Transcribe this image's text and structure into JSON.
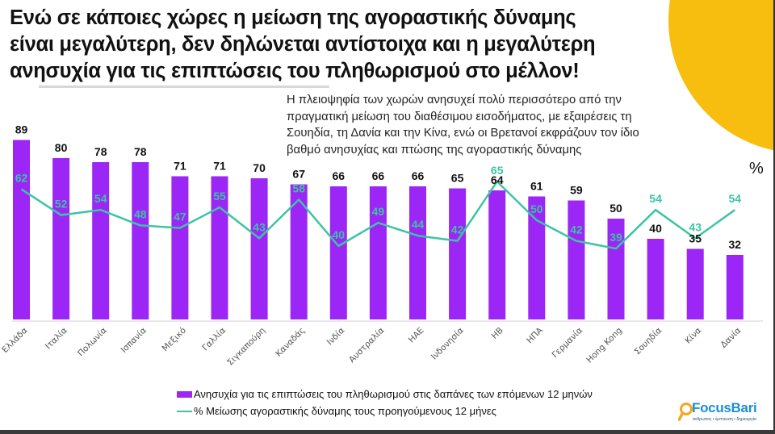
{
  "title_lines": [
    "Ενώ σε κάποιες χώρες η μείωση της αγοραστικής δύναμης",
    "είναι μεγαλύτερη, δεν δηλώνεται αντίστοιχα και η μεγαλύτερη",
    "ανησυχία για τις επιπτώσεις του πληθωρισμού στο μέλλον!"
  ],
  "subtitle_lines": [
    "Η πλειοψηφία των χωρών ανησυχεί πολύ περισσότερο από την",
    "πραγματική μείωση του διαθέσιμου εισοδήματος, με εξαιρέσεις τη",
    "Σουηδία, τη Δανία και την Κίνα, ενώ οι Βρετανοί εκφράζουν τον ίδιο",
    "βαθμό ανησυχίας και πτώσης της αγοραστικής δύναμης"
  ],
  "unit_label": "%",
  "logo": {
    "name": "FocusBari",
    "tagline": "άνθρωπος • έμπνευση • δημιουργία",
    "icon": "magnifier-icon"
  },
  "colors": {
    "bar": "#9b26f5",
    "line": "#3cc4a4",
    "accent_circle": "#f7bd0f"
  },
  "chart_data": {
    "type": "bar+line",
    "title": "Ενώ σε κάποιες χώρες η μείωση της αγοραστικής δύναμης είναι μεγαλύτερη, δεν δηλώνεται αντίστοιχα και η μεγαλύτερη ανησυχία για τις επιπτώσεις του πληθωρισμού στο μέλλον!",
    "ylabel": "%",
    "xlabel": "",
    "ylim": [
      0,
      100
    ],
    "grid": false,
    "legend_position": "bottom",
    "categories": [
      "Ελλάδα",
      "Ιταλία",
      "Πολωνία",
      "Ισπανία",
      "Μεξικό",
      "Γαλλία",
      "Σιγκαπούρη",
      "Καναδάς",
      "Ινδία",
      "Αυστραλία",
      "ΗΑΕ",
      "Ινδονησία",
      "ΗΒ",
      "ΗΠΑ",
      "Γερμανία",
      "Hong Kong",
      "Σουηδία",
      "Κίνα",
      "Δανία"
    ],
    "series": [
      {
        "name": "Ανησυχία για τις επιπτώσεις του πληθωρισμού στις δαπάνες των επόμενων 12 μηνών",
        "type": "bar",
        "values": [
          89,
          80,
          78,
          78,
          71,
          71,
          70,
          67,
          66,
          66,
          66,
          65,
          64,
          61,
          59,
          50,
          40,
          35,
          32
        ]
      },
      {
        "name": "% Μείωσης αγοραστικής δύναμης τους προηγούμενους 12 μήνες",
        "type": "line",
        "values": [
          62,
          52,
          54,
          48,
          47,
          55,
          43,
          58,
          40,
          49,
          44,
          42,
          65,
          50,
          42,
          39,
          54,
          43,
          54
        ]
      }
    ]
  }
}
